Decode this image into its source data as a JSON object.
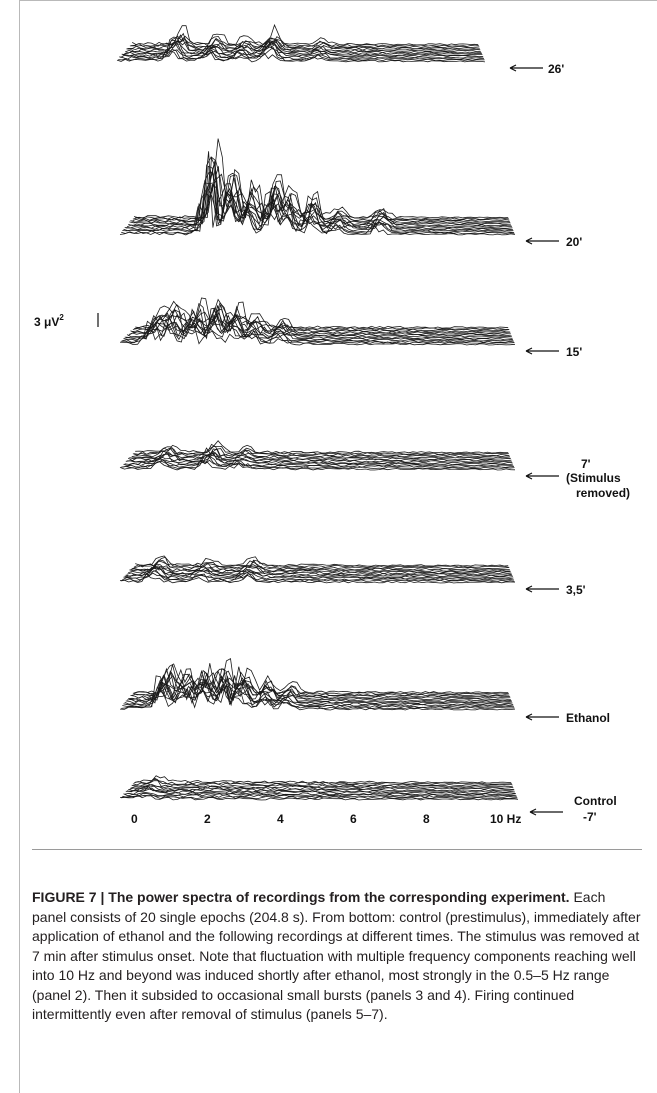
{
  "figure": {
    "scale_label": "3 μV",
    "scale_superscript": "2",
    "xaxis": {
      "ticks": [
        "0",
        "2",
        "4",
        "6",
        "8"
      ],
      "last_tick": "10 Hz",
      "range": [
        0,
        10
      ]
    },
    "panels": [
      {
        "time_label": "26'",
        "time_label_extra": [
          "",
          ""
        ]
      },
      {
        "time_label": "20'",
        "time_label_extra": [
          "",
          ""
        ]
      },
      {
        "time_label": "15'",
        "time_label_extra": [
          "",
          ""
        ]
      },
      {
        "time_label": "7'",
        "time_label_extra": [
          "(Stimulus",
          "removed)"
        ]
      },
      {
        "time_label": "3,5'",
        "time_label_extra": [
          "",
          ""
        ]
      },
      {
        "time_label": "Ethanol",
        "time_label_extra": [
          "",
          ""
        ]
      },
      {
        "time_label": "Control",
        "time_label_extra": [
          "-7'",
          ""
        ]
      }
    ]
  },
  "caption": {
    "title": "FIGURE 7 | The power spectra of recordings from the corresponding experiment.",
    "body": "Each panel consists of 20 single epochs (204.8 s). From bottom: control (prestimulus), immediately after application of ethanol and the following recordings at different times. The stimulus was removed at 7 min after stimulus onset. Note that fluctuation with multiple frequency components reaching well into 10 Hz and beyond was induced shortly after ethanol, most strongly in the 0.5–5 Hz range (panel 2). Then it subsided to occasional small bursts (panels 3 and 4). Firing continued intermittently even after removal of stimulus (panels 5–7)."
  },
  "colors": {
    "ink": "#231f20",
    "frame": "#b9b9b9"
  }
}
